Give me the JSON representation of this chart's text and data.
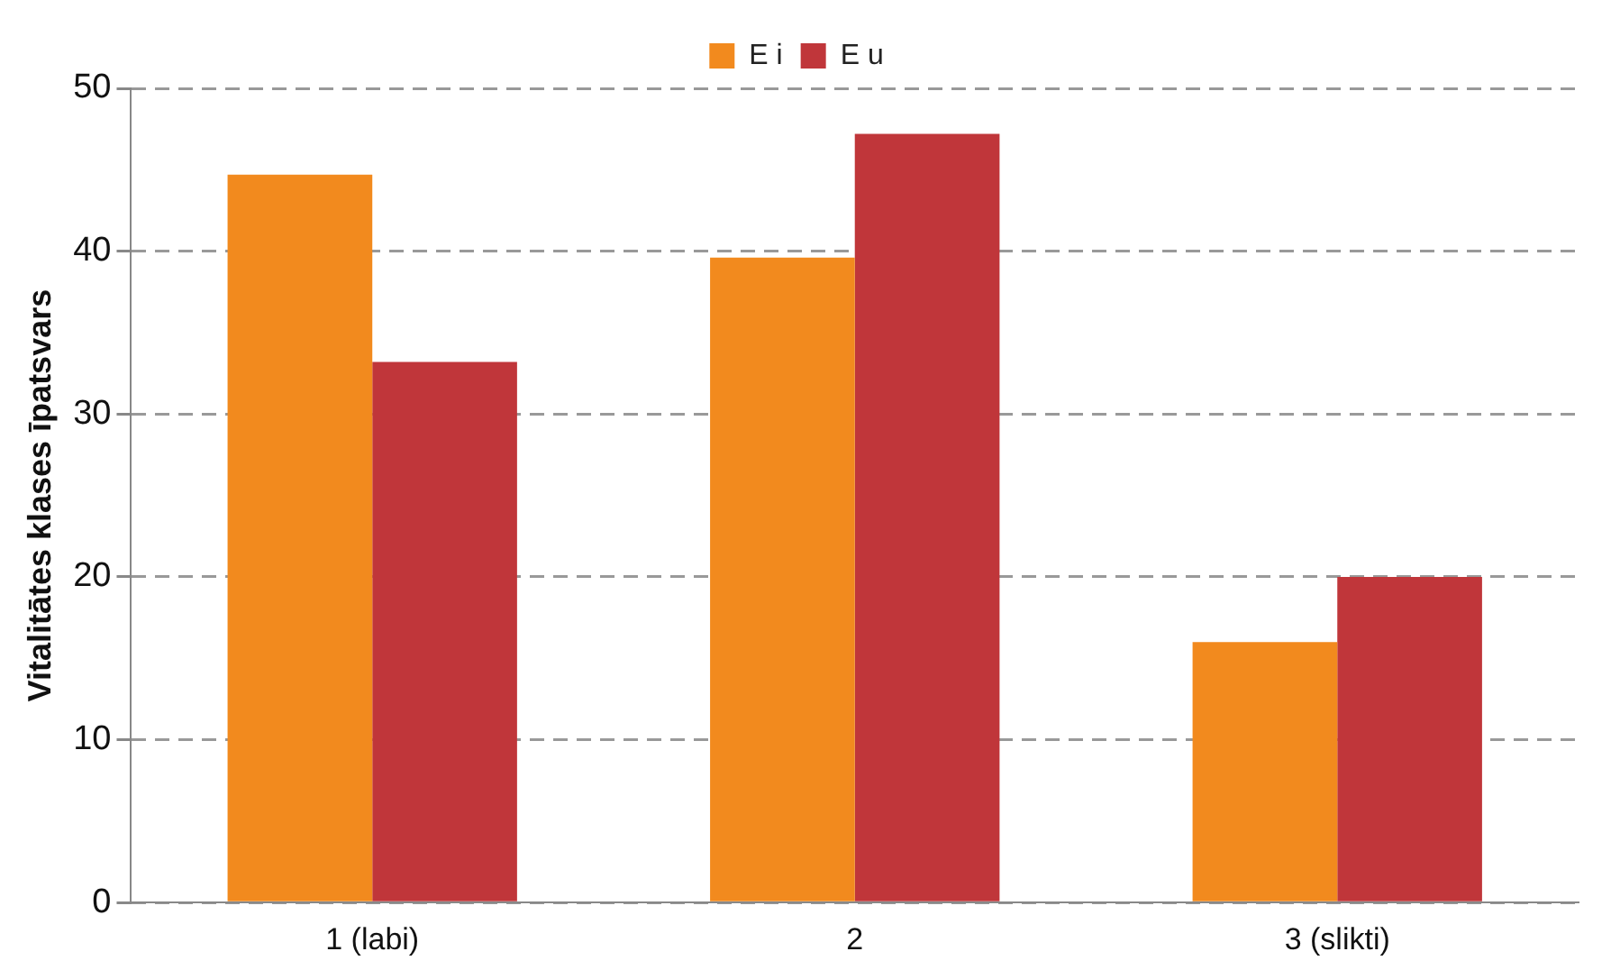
{
  "chart_data": {
    "type": "bar",
    "ylabel": "Vitalitātes klases īpatsvars",
    "categories": [
      "1 (labi)",
      "2",
      "3 (slikti)"
    ],
    "series": [
      {
        "name": "E i",
        "color": "#f28a1e",
        "values": [
          44.7,
          39.6,
          16.0
        ]
      },
      {
        "name": "E u",
        "color": "#c0363a",
        "values": [
          33.2,
          47.2,
          20.0
        ]
      }
    ],
    "ylim": [
      0,
      50
    ],
    "yticks": [
      0,
      10,
      20,
      30,
      40,
      50
    ],
    "grid": "y",
    "legend": "top"
  }
}
